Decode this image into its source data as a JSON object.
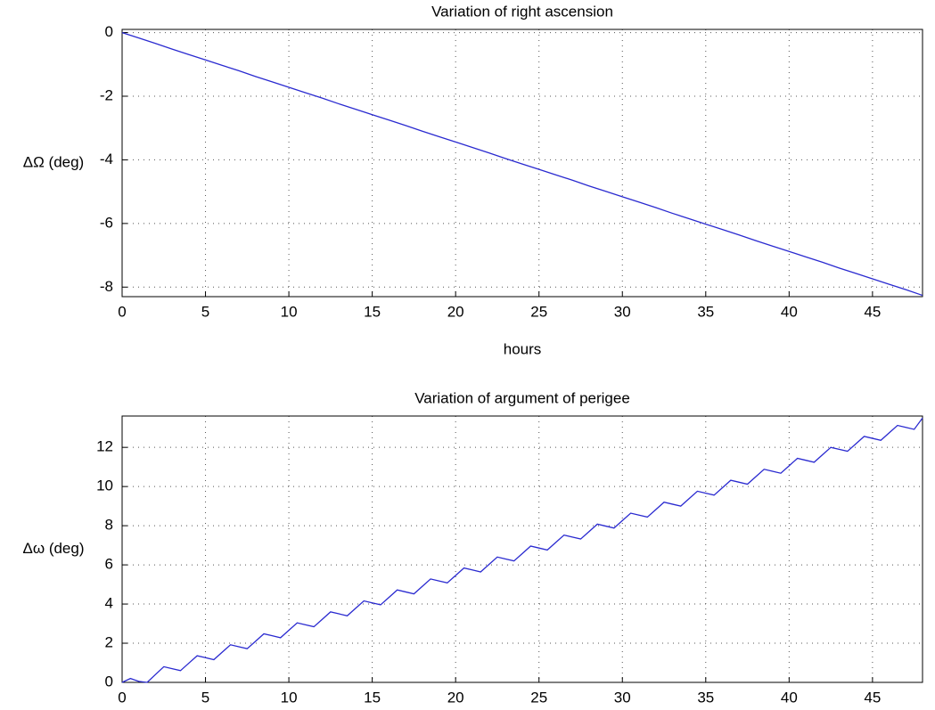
{
  "chart_data": [
    {
      "type": "line",
      "title": "Variation of right ascension",
      "ylabel": "ΔΩ (deg)",
      "xlabel": "hours",
      "x": [
        0,
        1,
        2,
        3,
        4,
        5,
        6,
        7,
        8,
        9,
        10,
        11,
        12,
        13,
        14,
        15,
        16,
        17,
        18,
        19,
        20,
        21,
        22,
        23,
        24,
        25,
        26,
        27,
        28,
        29,
        30,
        31,
        32,
        33,
        34,
        35,
        36,
        37,
        38,
        39,
        40,
        41,
        42,
        43,
        44,
        45,
        46,
        47,
        48
      ],
      "series": [
        {
          "name": "ΔΩ",
          "color": "#2a2ad0",
          "values": [
            0,
            -0.17,
            -0.34,
            -0.52,
            -0.69,
            -0.86,
            -1.03,
            -1.2,
            -1.38,
            -1.55,
            -1.72,
            -1.89,
            -2.06,
            -2.24,
            -2.41,
            -2.58,
            -2.75,
            -2.92,
            -3.1,
            -3.27,
            -3.44,
            -3.61,
            -3.78,
            -3.96,
            -4.13,
            -4.3,
            -4.47,
            -4.64,
            -4.82,
            -4.99,
            -5.16,
            -5.33,
            -5.5,
            -5.68,
            -5.85,
            -6.02,
            -6.19,
            -6.36,
            -6.54,
            -6.71,
            -6.88,
            -7.05,
            -7.22,
            -7.4,
            -7.57,
            -7.74,
            -7.91,
            -8.08,
            -8.26
          ]
        }
      ],
      "xlim": [
        0,
        48
      ],
      "xticks": [
        0,
        5,
        10,
        15,
        20,
        25,
        30,
        35,
        40,
        45
      ],
      "ylim": [
        -8.3,
        0.1
      ],
      "yticks": [
        0,
        -2,
        -4,
        -6,
        -8
      ],
      "grid": true
    },
    {
      "type": "line",
      "title": "Variation of argument of perigee",
      "ylabel": "Δω (deg)",
      "x": [
        0,
        0.5,
        1,
        1.5,
        2,
        2.5,
        3,
        3.5,
        4,
        4.5,
        5,
        5.5,
        6,
        6.5,
        7,
        7.5,
        8,
        8.5,
        9,
        9.5,
        10,
        10.5,
        11,
        11.5,
        12,
        12.5,
        13,
        13.5,
        14,
        14.5,
        15,
        15.5,
        16,
        16.5,
        17,
        17.5,
        18,
        18.5,
        19,
        19.5,
        20,
        20.5,
        21,
        21.5,
        22,
        22.5,
        23,
        23.5,
        24,
        24.5,
        25,
        25.5,
        26,
        26.5,
        27,
        27.5,
        28,
        28.5,
        29,
        29.5,
        30,
        30.5,
        31,
        31.5,
        32,
        32.5,
        33,
        33.5,
        34,
        34.5,
        35,
        35.5,
        36,
        36.5,
        37,
        37.5,
        38,
        38.5,
        39,
        39.5,
        40,
        40.5,
        41,
        41.5,
        42,
        42.5,
        43,
        43.5,
        44,
        44.5,
        45,
        45.5,
        46,
        46.5,
        47,
        47.5,
        48
      ],
      "series": [
        {
          "name": "Δω",
          "color": "#2a2ad0",
          "values": [
            0,
            0.2,
            0.05,
            0,
            0.4,
            0.8,
            0.7,
            0.6,
            0.98,
            1.36,
            1.26,
            1.16,
            1.54,
            1.92,
            1.82,
            1.72,
            2.1,
            2.48,
            2.38,
            2.28,
            2.66,
            3.04,
            2.94,
            2.84,
            3.22,
            3.6,
            3.5,
            3.4,
            3.78,
            4.16,
            4.06,
            3.96,
            4.34,
            4.72,
            4.62,
            4.52,
            4.9,
            5.28,
            5.18,
            5.08,
            5.46,
            5.84,
            5.74,
            5.64,
            6.02,
            6.4,
            6.3,
            6.2,
            6.58,
            6.96,
            6.86,
            6.76,
            7.14,
            7.52,
            7.42,
            7.32,
            7.7,
            8.08,
            7.98,
            7.88,
            8.26,
            8.64,
            8.54,
            8.44,
            8.82,
            9.2,
            9.1,
            9.0,
            9.38,
            9.76,
            9.66,
            9.56,
            9.94,
            10.32,
            10.22,
            10.12,
            10.5,
            10.88,
            10.78,
            10.68,
            11.06,
            11.44,
            11.34,
            11.24,
            11.62,
            12.0,
            11.9,
            11.8,
            12.18,
            12.56,
            12.46,
            12.36,
            12.74,
            13.12,
            13.02,
            12.92,
            13.5
          ]
        }
      ],
      "xlim": [
        0,
        48
      ],
      "xticks": [
        0,
        5,
        10,
        15,
        20,
        25,
        30,
        35,
        40,
        45
      ],
      "ylim": [
        0,
        13.6
      ],
      "yticks": [
        0,
        2,
        4,
        6,
        8,
        10,
        12
      ],
      "grid": true
    }
  ]
}
